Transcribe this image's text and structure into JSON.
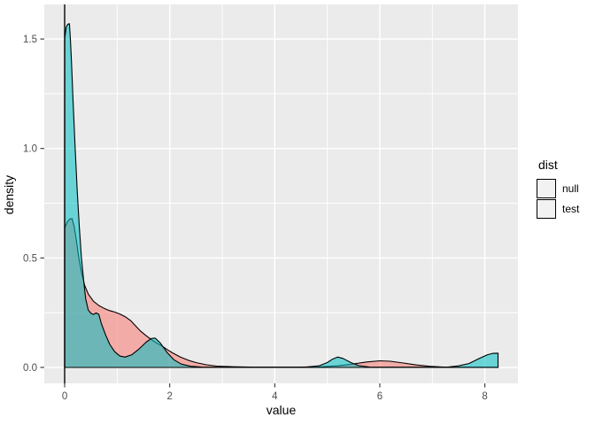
{
  "chart_data": {
    "type": "area",
    "subtype": "density",
    "title": "",
    "xlabel": "value",
    "ylabel": "density",
    "grid": true,
    "legend_position": "right",
    "x_axis": {
      "lim": [
        -0.388,
        8.63
      ],
      "ticks": [
        {
          "v": 0,
          "label": "0"
        },
        {
          "v": 2,
          "label": "2"
        },
        {
          "v": 4,
          "label": "4"
        },
        {
          "v": 6,
          "label": "6"
        },
        {
          "v": 8,
          "label": "8"
        }
      ],
      "minor": [
        1,
        3,
        5,
        7
      ]
    },
    "y_axis": {
      "lim": [
        -0.073,
        1.658
      ],
      "ticks": [
        {
          "v": 0,
          "label": "0.0"
        },
        {
          "v": 0.5,
          "label": "0.5"
        },
        {
          "v": 1,
          "label": "1.0"
        },
        {
          "v": 1.5,
          "label": "1.5"
        }
      ],
      "minor": [
        0.25,
        0.75,
        1.25
      ]
    },
    "vline_x": 0,
    "legend": {
      "title": "dist",
      "entries": [
        {
          "label": "null",
          "color": "#F8766D"
        },
        {
          "label": "test",
          "color": "#00BFC4"
        }
      ]
    },
    "series": [
      {
        "name": "null",
        "color": "#F8766D",
        "alpha": 0.55,
        "points": [
          [
            0,
            0.635
          ],
          [
            0.05,
            0.665
          ],
          [
            0.1,
            0.678
          ],
          [
            0.14,
            0.68
          ],
          [
            0.18,
            0.645
          ],
          [
            0.22,
            0.585
          ],
          [
            0.27,
            0.5
          ],
          [
            0.32,
            0.435
          ],
          [
            0.38,
            0.375
          ],
          [
            0.45,
            0.335
          ],
          [
            0.55,
            0.302
          ],
          [
            0.65,
            0.283
          ],
          [
            0.75,
            0.27
          ],
          [
            0.85,
            0.26
          ],
          [
            0.95,
            0.253
          ],
          [
            1.05,
            0.244
          ],
          [
            1.15,
            0.232
          ],
          [
            1.25,
            0.215
          ],
          [
            1.35,
            0.19
          ],
          [
            1.45,
            0.165
          ],
          [
            1.55,
            0.145
          ],
          [
            1.65,
            0.127
          ],
          [
            1.75,
            0.112
          ],
          [
            1.85,
            0.098
          ],
          [
            1.95,
            0.082
          ],
          [
            2.05,
            0.067
          ],
          [
            2.2,
            0.048
          ],
          [
            2.35,
            0.033
          ],
          [
            2.5,
            0.022
          ],
          [
            2.7,
            0.012
          ],
          [
            2.9,
            0.006
          ],
          [
            3.2,
            0.003
          ],
          [
            3.6,
            0.001
          ],
          [
            4.4,
            0.001
          ],
          [
            4.9,
            0.003
          ],
          [
            5.2,
            0.007
          ],
          [
            5.5,
            0.016
          ],
          [
            5.75,
            0.025
          ],
          [
            6.0,
            0.03
          ],
          [
            6.2,
            0.028
          ],
          [
            6.45,
            0.02
          ],
          [
            6.7,
            0.011
          ],
          [
            6.95,
            0.005
          ],
          [
            7.2,
            0.002
          ],
          [
            7.6,
            0.001
          ],
          [
            8.25,
            0.001
          ]
        ]
      },
      {
        "name": "test",
        "color": "#00BFC4",
        "alpha": 0.55,
        "points": [
          [
            0,
            1.5
          ],
          [
            0.03,
            1.555
          ],
          [
            0.06,
            1.568
          ],
          [
            0.09,
            1.57
          ],
          [
            0.11,
            1.5
          ],
          [
            0.13,
            1.4
          ],
          [
            0.16,
            1.22
          ],
          [
            0.2,
            1.0
          ],
          [
            0.24,
            0.8
          ],
          [
            0.28,
            0.64
          ],
          [
            0.32,
            0.5
          ],
          [
            0.36,
            0.4
          ],
          [
            0.4,
            0.315
          ],
          [
            0.45,
            0.262
          ],
          [
            0.5,
            0.247
          ],
          [
            0.55,
            0.242
          ],
          [
            0.6,
            0.249
          ],
          [
            0.65,
            0.242
          ],
          [
            0.7,
            0.2
          ],
          [
            0.78,
            0.148
          ],
          [
            0.86,
            0.105
          ],
          [
            0.95,
            0.072
          ],
          [
            1.05,
            0.052
          ],
          [
            1.15,
            0.047
          ],
          [
            1.28,
            0.058
          ],
          [
            1.42,
            0.085
          ],
          [
            1.55,
            0.115
          ],
          [
            1.65,
            0.132
          ],
          [
            1.72,
            0.134
          ],
          [
            1.82,
            0.112
          ],
          [
            1.95,
            0.068
          ],
          [
            2.08,
            0.035
          ],
          [
            2.22,
            0.015
          ],
          [
            2.4,
            0.005
          ],
          [
            2.6,
            0.002
          ],
          [
            3.0,
            0.001
          ],
          [
            4.0,
            0.001
          ],
          [
            4.6,
            0.002
          ],
          [
            4.85,
            0.008
          ],
          [
            5.0,
            0.022
          ],
          [
            5.1,
            0.038
          ],
          [
            5.2,
            0.047
          ],
          [
            5.3,
            0.041
          ],
          [
            5.45,
            0.022
          ],
          [
            5.6,
            0.008
          ],
          [
            5.8,
            0.002
          ],
          [
            6.2,
            0.001
          ],
          [
            7.0,
            0.001
          ],
          [
            7.3,
            0.002
          ],
          [
            7.5,
            0.007
          ],
          [
            7.7,
            0.018
          ],
          [
            7.9,
            0.042
          ],
          [
            8.05,
            0.058
          ],
          [
            8.15,
            0.064
          ],
          [
            8.25,
            0.065
          ]
        ]
      }
    ],
    "colors": {
      "panel_bg": "#EBEBEB",
      "grid": "#FFFFFF",
      "outline": "#000000",
      "tick_text": "#4D4D4D",
      "tick_mark": "#333333",
      "axis_title": "#000000",
      "plot_bg": "#FFFFFF"
    }
  }
}
